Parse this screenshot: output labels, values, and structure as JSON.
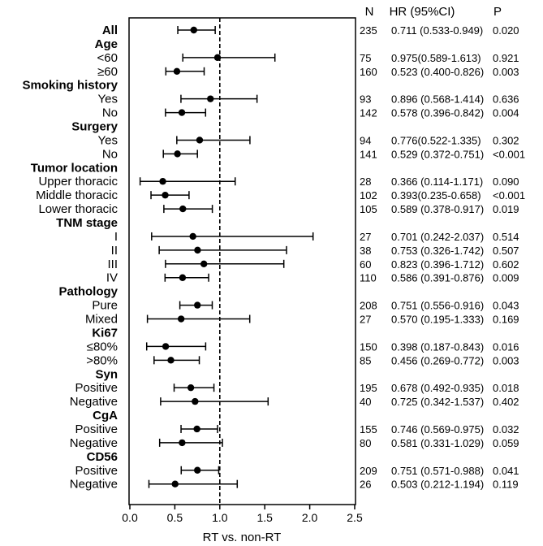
{
  "chart_data": {
    "type": "forest",
    "xlabel": "RT vs. non-RT",
    "xlim": [
      0,
      2.5
    ],
    "xticks": [
      "0.0",
      "0.5",
      "1.0",
      "1.5",
      "2.0",
      "2.5"
    ],
    "xtick_values": [
      0,
      0.5,
      1.0,
      1.5,
      2.0,
      2.5
    ],
    "reference_line": 1.0,
    "headers": {
      "n": "N",
      "hr": "HR (95%CI)",
      "p": "P"
    },
    "rows": [
      {
        "label": "All",
        "header": true,
        "hr": 0.711,
        "lo": 0.533,
        "hi": 0.949,
        "n": "235",
        "hr_text": "0.711 (0.533-0.949)",
        "p": "0.020"
      },
      {
        "label": "Age",
        "header": true
      },
      {
        "label": "<60",
        "hr": 0.975,
        "lo": 0.589,
        "hi": 1.613,
        "n": "75",
        "hr_text": "0.975(0.589-1.613)",
        "p": "0.921"
      },
      {
        "label": "≥60",
        "hr": 0.523,
        "lo": 0.4,
        "hi": 0.826,
        "n": "160",
        "hr_text": "0.523 (0.400-0.826)",
        "p": "0.003"
      },
      {
        "label": "Smoking history",
        "header": true
      },
      {
        "label": "Yes",
        "hr": 0.896,
        "lo": 0.568,
        "hi": 1.414,
        "n": "93",
        "hr_text": "0.896 (0.568-1.414)",
        "p": "0.636"
      },
      {
        "label": "No",
        "hr": 0.578,
        "lo": 0.396,
        "hi": 0.842,
        "n": "142",
        "hr_text": "0.578 (0.396-0.842)",
        "p": "0.004"
      },
      {
        "label": "Surgery",
        "header": true
      },
      {
        "label": "Yes",
        "hr": 0.776,
        "lo": 0.522,
        "hi": 1.335,
        "n": "94",
        "hr_text": "0.776(0.522-1.335)",
        "p": "0.302"
      },
      {
        "label": "No",
        "hr": 0.529,
        "lo": 0.372,
        "hi": 0.751,
        "n": "141",
        "hr_text": "0.529 (0.372-0.751)",
        "p": "<0.001"
      },
      {
        "label": "Tumor location",
        "header": true
      },
      {
        "label": "Upper thoracic",
        "hr": 0.366,
        "lo": 0.114,
        "hi": 1.171,
        "n": "28",
        "hr_text": "0.366 (0.114-1.171)",
        "p": "0.090"
      },
      {
        "label": "Middle thoracic",
        "hr": 0.393,
        "lo": 0.235,
        "hi": 0.658,
        "n": "102",
        "hr_text": "0.393(0.235-0.658)",
        "p": "<0.001"
      },
      {
        "label": "Lower thoracic",
        "hr": 0.589,
        "lo": 0.378,
        "hi": 0.917,
        "n": "105",
        "hr_text": "0.589 (0.378-0.917)",
        "p": "0.019"
      },
      {
        "label": "TNM stage",
        "header": true
      },
      {
        "label": "I",
        "hr": 0.701,
        "lo": 0.242,
        "hi": 2.037,
        "n": "27",
        "hr_text": "0.701 (0.242-2.037)",
        "p": "0.514"
      },
      {
        "label": "II",
        "hr": 0.753,
        "lo": 0.326,
        "hi": 1.742,
        "n": "38",
        "hr_text": "0.753 (0.326-1.742)",
        "p": "0.507"
      },
      {
        "label": "III",
        "hr": 0.823,
        "lo": 0.396,
        "hi": 1.712,
        "n": "60",
        "hr_text": "0.823 (0.396-1.712)",
        "p": "0.602"
      },
      {
        "label": "IV",
        "hr": 0.586,
        "lo": 0.391,
        "hi": 0.876,
        "n": "110",
        "hr_text": "0.586 (0.391-0.876)",
        "p": "0.009"
      },
      {
        "label": "Pathology",
        "header": true
      },
      {
        "label": "Pure",
        "hr": 0.751,
        "lo": 0.556,
        "hi": 0.916,
        "n": "208",
        "hr_text": "0.751 (0.556-0.916)",
        "p": "0.043"
      },
      {
        "label": "Mixed",
        "hr": 0.57,
        "lo": 0.195,
        "hi": 1.333,
        "n": "27",
        "hr_text": "0.570 (0.195-1.333)",
        "p": "0.169"
      },
      {
        "label": "Ki67",
        "header": true
      },
      {
        "label": "≤80%",
        "hr": 0.398,
        "lo": 0.187,
        "hi": 0.843,
        "n": "150",
        "hr_text": "0.398 (0.187-0.843)",
        "p": "0.016"
      },
      {
        "label": ">80%",
        "hr": 0.456,
        "lo": 0.269,
        "hi": 0.772,
        "n": "85",
        "hr_text": "0.456 (0.269-0.772)",
        "p": "0.003"
      },
      {
        "label": "Syn",
        "header": true
      },
      {
        "label": "Positive",
        "hr": 0.678,
        "lo": 0.492,
        "hi": 0.935,
        "n": "195",
        "hr_text": "0.678 (0.492-0.935)",
        "p": "0.018"
      },
      {
        "label": "Negative",
        "hr": 0.725,
        "lo": 0.342,
        "hi": 1.537,
        "n": "40",
        "hr_text": "0.725 (0.342-1.537)",
        "p": "0.402"
      },
      {
        "label": "CgA",
        "header": true
      },
      {
        "label": "Positive",
        "hr": 0.746,
        "lo": 0.569,
        "hi": 0.975,
        "n": "155",
        "hr_text": "0.746 (0.569-0.975)",
        "p": "0.032"
      },
      {
        "label": "Negative",
        "hr": 0.581,
        "lo": 0.331,
        "hi": 1.029,
        "n": "80",
        "hr_text": "0.581 (0.331-1.029)",
        "p": "0.059"
      },
      {
        "label": "CD56",
        "header": true
      },
      {
        "label": "Positive",
        "hr": 0.751,
        "lo": 0.571,
        "hi": 0.988,
        "n": "209",
        "hr_text": "0.751 (0.571-0.988)",
        "p": "0.041"
      },
      {
        "label": "Negative",
        "hr": 0.503,
        "lo": 0.212,
        "hi": 1.194,
        "n": "26",
        "hr_text": "0.503 (0.212-1.194)",
        "p": "0.119"
      }
    ]
  }
}
